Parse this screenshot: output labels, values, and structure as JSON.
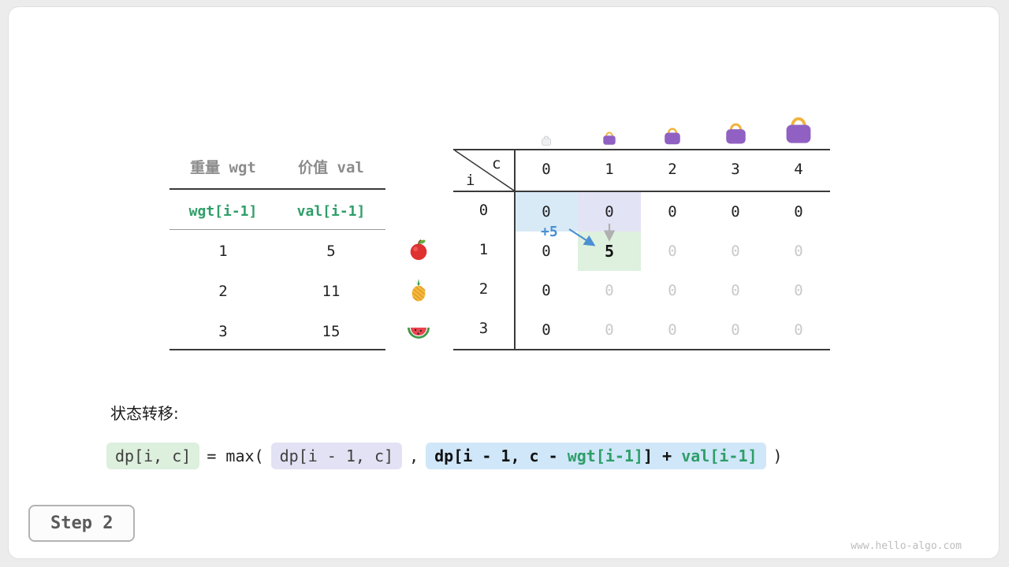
{
  "colors": {
    "accent_green": "#2f9e69",
    "arrow_blue": "#4a90d2",
    "cell_highlight_blue": "#d9eaf7",
    "cell_highlight_purple": "#e3e3f6",
    "cell_highlight_green": "#def0de",
    "faded_text": "#c9c9c9"
  },
  "items_table": {
    "headers": [
      "重量 wgt",
      "价值 val"
    ],
    "formula_row": [
      "wgt[i-1]",
      "val[i-1]"
    ],
    "rows": [
      {
        "wgt": "1",
        "val": "5",
        "icon": "apple-icon"
      },
      {
        "wgt": "2",
        "val": "11",
        "icon": "pineapple-icon"
      },
      {
        "wgt": "3",
        "val": "15",
        "icon": "watermelon-icon"
      }
    ]
  },
  "dp_table": {
    "corner": {
      "top_label": "c",
      "bottom_label": "i"
    },
    "col_headers": [
      "0",
      "1",
      "2",
      "3",
      "4"
    ],
    "row_headers": [
      "0",
      "1",
      "2",
      "3"
    ],
    "cells": [
      [
        "0",
        "0",
        "0",
        "0",
        "0"
      ],
      [
        "0",
        "5",
        "0",
        "0",
        "0"
      ],
      [
        "0",
        "0",
        "0",
        "0",
        "0"
      ],
      [
        "0",
        "0",
        "0",
        "0",
        "0"
      ]
    ],
    "annotation_plus": "+5"
  },
  "formula": {
    "label": "状态转移:",
    "lhs": "dp[i, c]",
    "op": "= max(",
    "arg1": "dp[i - 1, c]",
    "separator": ",",
    "arg2_prefix": "dp[i - 1, c - ",
    "arg2_wgt": "wgt[i-1]",
    "arg2_mid": "] + ",
    "arg2_val": "val[i-1]",
    "close": ")"
  },
  "footer": {
    "step_label": "Step 2",
    "watermark": "www.hello-algo.com"
  }
}
